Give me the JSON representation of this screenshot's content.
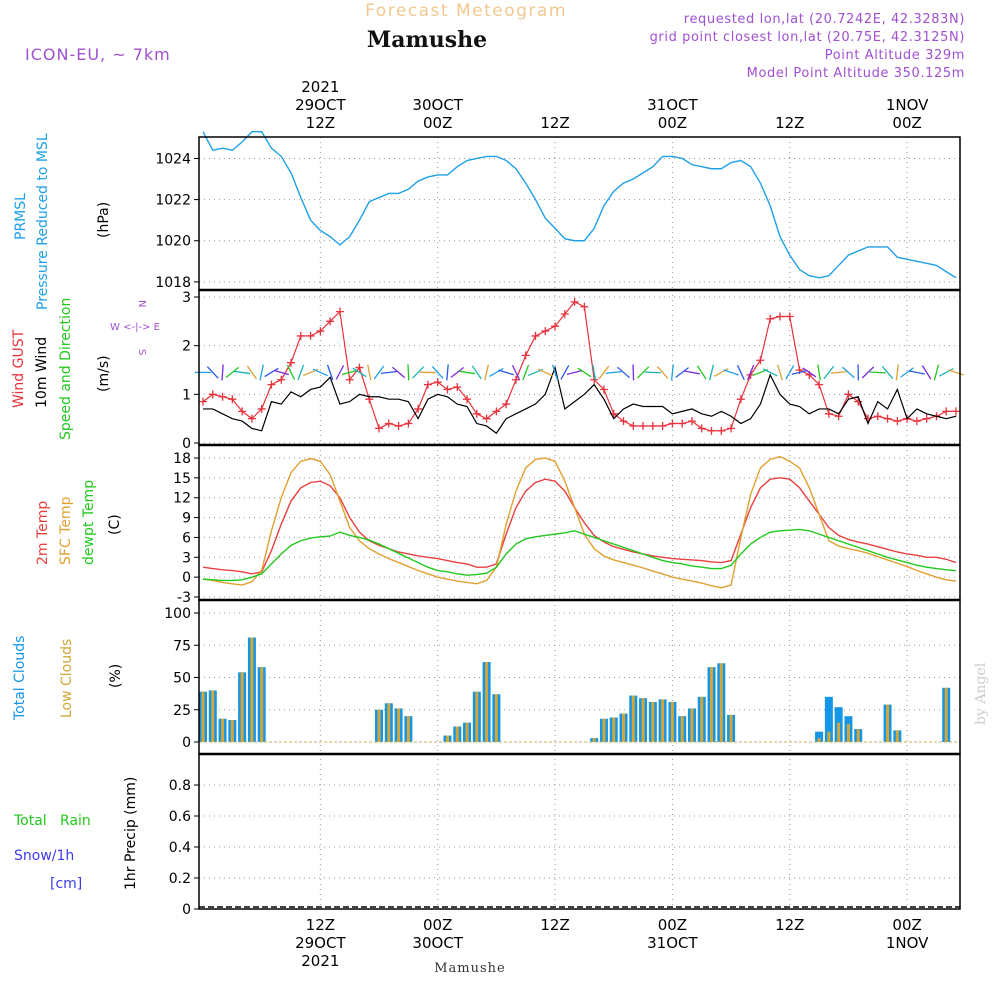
{
  "header": {
    "product": "Forecast Meteogram",
    "location": "Mamushe",
    "model": "ICON-EU, ~ 7km",
    "requested": "requested lon,lat (20.7242E, 42.3283N)",
    "grid_point": "grid point closest lon,lat (20.75E, 42.3125N)",
    "point_altitude": "Point Altitude 329m",
    "model_altitude": "Model Point Altitude 350.125m",
    "footer_location": "Mamushe",
    "credit": "by Angel"
  },
  "time_axis": {
    "top": [
      {
        "t": 12,
        "lines": [
          "2021",
          "29OCT",
          "12Z"
        ]
      },
      {
        "t": 24,
        "lines": [
          "30OCT",
          "00Z"
        ]
      },
      {
        "t": 36,
        "lines": [
          "12Z"
        ]
      },
      {
        "t": 48,
        "lines": [
          "31OCT",
          "00Z"
        ]
      },
      {
        "t": 60,
        "lines": [
          "12Z"
        ]
      },
      {
        "t": 72,
        "lines": [
          "1NOV",
          "00Z"
        ]
      }
    ],
    "bottom": [
      {
        "t": 12,
        "lines": [
          "12Z",
          "29OCT",
          "2021"
        ]
      },
      {
        "t": 24,
        "lines": [
          "00Z",
          "30OCT"
        ]
      },
      {
        "t": 36,
        "lines": [
          "12Z"
        ]
      },
      {
        "t": 48,
        "lines": [
          "00Z",
          "31OCT"
        ]
      },
      {
        "t": 60,
        "lines": [
          "12Z"
        ]
      },
      {
        "t": 72,
        "lines": [
          "00Z",
          "1NOV"
        ]
      }
    ]
  },
  "panel_labels": {
    "pressure": {
      "name": "PRMSL",
      "desc": "Pressure Reduced to MSL",
      "unit": "(hPa)"
    },
    "wind": {
      "gust": "Wind GUST",
      "wind10m": "10m Wind",
      "speed_dir": "Speed and Direction",
      "unit": "(m/s)",
      "compass_n": "N",
      "compass_s": "S",
      "compass_we": "W <-|-> E"
    },
    "temp": {
      "t2m": "2m Temp",
      "sfc": "SFC Temp",
      "dewpt": "dewpt Temp",
      "unit": "(C)"
    },
    "clouds": {
      "total": "Total Clouds",
      "low": "Low Clouds",
      "unit": "(%)"
    },
    "precip": {
      "rain": "Total   Rain",
      "snow": "Snow/1h",
      "snow_unit": "[cm]",
      "name": "1hr Precip (mm)"
    }
  },
  "colors": {
    "pressure": "#1ea0e6",
    "gust": "#e8323c",
    "wind10m": "#000000",
    "green": "#22c81e",
    "t2m": "#e84040",
    "sfc": "#e0a030",
    "dewpt": "#22c81e",
    "total_clouds": "#1496e6",
    "low_clouds": "#d4a637",
    "purple": "#a050d0",
    "header_orange": "#f0c890",
    "snow": "#3c3cf0"
  },
  "chart_data": [
    {
      "type": "line",
      "name": "Pressure Reduced to MSL",
      "ylabel": "(hPa)",
      "ylim": [
        1017.8,
        1024.8
      ],
      "yticks": [
        1018,
        1020,
        1022,
        1024
      ],
      "x": [
        0,
        1,
        2,
        3,
        4,
        5,
        6,
        7,
        8,
        9,
        10,
        11,
        12,
        13,
        14,
        15,
        16,
        17,
        18,
        19,
        20,
        21,
        22,
        23,
        24,
        25,
        26,
        27,
        28,
        29,
        30,
        31,
        32,
        33,
        34,
        35,
        36,
        37,
        38,
        39,
        40,
        41,
        42,
        43,
        44,
        45,
        46,
        47,
        48,
        49,
        50,
        51,
        52,
        53,
        54,
        55,
        56,
        57,
        58,
        59,
        60,
        61,
        62,
        63,
        64,
        65,
        66,
        67,
        68,
        69,
        70,
        71,
        72,
        73,
        74,
        75,
        76,
        77
      ],
      "series": [
        {
          "name": "PRMSL",
          "values": [
            1025.3,
            1024.4,
            1024.5,
            1024.4,
            1024.8,
            1025.3,
            1025.3,
            1024.5,
            1024.1,
            1023.3,
            1022.1,
            1021.0,
            1020.5,
            1020.2,
            1019.8,
            1020.2,
            1021.0,
            1021.9,
            1022.1,
            1022.3,
            1022.3,
            1022.5,
            1022.9,
            1023.1,
            1023.2,
            1023.2,
            1023.6,
            1023.9,
            1024.0,
            1024.1,
            1024.1,
            1023.9,
            1023.5,
            1022.8,
            1022.0,
            1021.1,
            1020.6,
            1020.1,
            1020.0,
            1020.0,
            1020.6,
            1021.7,
            1022.4,
            1022.8,
            1023.0,
            1023.3,
            1023.6,
            1024.1,
            1024.1,
            1024.0,
            1023.7,
            1023.6,
            1023.5,
            1023.5,
            1023.8,
            1023.9,
            1023.6,
            1022.8,
            1021.7,
            1020.2,
            1019.3,
            1018.6,
            1018.3,
            1018.2,
            1018.3,
            1018.8,
            1019.3,
            1019.5,
            1019.7,
            1019.7,
            1019.7,
            1019.2,
            1019.1,
            1019.0,
            1018.9,
            1018.8,
            1018.5,
            1018.2
          ]
        }
      ]
    },
    {
      "type": "line",
      "name": "Wind",
      "ylabel": "(m/s)",
      "ylim": [
        0,
        3
      ],
      "yticks": [
        0,
        1,
        2,
        3
      ],
      "x": [
        0,
        1,
        2,
        3,
        4,
        5,
        6,
        7,
        8,
        9,
        10,
        11,
        12,
        13,
        14,
        15,
        16,
        17,
        18,
        19,
        20,
        21,
        22,
        23,
        24,
        25,
        26,
        27,
        28,
        29,
        30,
        31,
        32,
        33,
        34,
        35,
        36,
        37,
        38,
        39,
        40,
        41,
        42,
        43,
        44,
        45,
        46,
        47,
        48,
        49,
        50,
        51,
        52,
        53,
        54,
        55,
        56,
        57,
        58,
        59,
        60,
        61,
        62,
        63,
        64,
        65,
        66,
        67,
        68,
        69,
        70,
        71,
        72,
        73,
        74,
        75,
        76,
        77
      ],
      "series": [
        {
          "name": "Wind GUST",
          "values": [
            0.85,
            1.0,
            0.95,
            0.9,
            0.65,
            0.5,
            0.7,
            1.2,
            1.3,
            1.65,
            2.2,
            2.2,
            2.3,
            2.5,
            2.7,
            1.3,
            1.55,
            0.9,
            0.3,
            0.4,
            0.35,
            0.4,
            0.7,
            1.2,
            1.25,
            1.1,
            1.15,
            0.9,
            0.6,
            0.5,
            0.65,
            0.8,
            1.3,
            1.8,
            2.2,
            2.3,
            2.4,
            2.65,
            2.9,
            2.8,
            1.3,
            1.1,
            0.6,
            0.45,
            0.35,
            0.35,
            0.35,
            0.35,
            0.4,
            0.4,
            0.45,
            0.3,
            0.25,
            0.25,
            0.3,
            0.9,
            1.4,
            1.7,
            2.55,
            2.6,
            2.6,
            1.5,
            1.4,
            1.2,
            0.6,
            0.55,
            1.0,
            0.85,
            0.5,
            0.55,
            0.5,
            0.45,
            0.5,
            0.45,
            0.5,
            0.55,
            0.65,
            0.65
          ]
        },
        {
          "name": "10m Wind",
          "values": [
            0.7,
            0.7,
            0.6,
            0.5,
            0.45,
            0.3,
            0.25,
            0.85,
            0.8,
            1.05,
            0.95,
            1.1,
            1.15,
            1.35,
            0.8,
            0.85,
            1.0,
            0.95,
            0.95,
            0.9,
            0.9,
            0.85,
            0.5,
            0.9,
            1.0,
            0.95,
            0.8,
            0.75,
            0.4,
            0.35,
            0.2,
            0.5,
            0.6,
            0.7,
            0.8,
            1.0,
            1.55,
            0.7,
            0.85,
            1.0,
            1.2,
            0.9,
            0.5,
            0.7,
            0.8,
            0.75,
            0.75,
            0.75,
            0.6,
            0.65,
            0.7,
            0.6,
            0.55,
            0.65,
            0.55,
            0.4,
            0.5,
            0.8,
            1.4,
            1.0,
            0.8,
            0.75,
            0.6,
            0.7,
            0.7,
            0.6,
            0.9,
            0.95,
            0.4,
            0.85,
            0.7,
            1.1,
            0.5,
            0.7,
            0.6,
            0.55,
            0.5,
            0.55
          ]
        }
      ]
    },
    {
      "type": "line",
      "name": "Temperature",
      "ylabel": "(C)",
      "ylim": [
        -3,
        19
      ],
      "yticks": [
        -3,
        0,
        3,
        6,
        9,
        12,
        15,
        18
      ],
      "x": [
        0,
        1,
        2,
        3,
        4,
        5,
        6,
        7,
        8,
        9,
        10,
        11,
        12,
        13,
        14,
        15,
        16,
        17,
        18,
        19,
        20,
        21,
        22,
        23,
        24,
        25,
        26,
        27,
        28,
        29,
        30,
        31,
        32,
        33,
        34,
        35,
        36,
        37,
        38,
        39,
        40,
        41,
        42,
        43,
        44,
        45,
        46,
        47,
        48,
        49,
        50,
        51,
        52,
        53,
        54,
        55,
        56,
        57,
        58,
        59,
        60,
        61,
        62,
        63,
        64,
        65,
        66,
        67,
        68,
        69,
        70,
        71,
        72,
        73,
        74,
        75,
        76,
        77
      ],
      "series": [
        {
          "name": "2m Temp",
          "values": [
            1.5,
            1.3,
            1.1,
            1.0,
            0.8,
            0.5,
            0.8,
            4.0,
            8.0,
            11.5,
            13.5,
            14.3,
            14.5,
            13.8,
            12.0,
            9.0,
            6.8,
            5.5,
            4.8,
            4.3,
            3.8,
            3.5,
            3.2,
            3.0,
            2.8,
            2.5,
            2.2,
            2.0,
            1.5,
            1.5,
            2.0,
            6.5,
            10.5,
            13.0,
            14.3,
            14.8,
            14.5,
            13.0,
            10.5,
            8.2,
            6.3,
            5.3,
            4.6,
            4.2,
            3.8,
            3.5,
            3.2,
            3.0,
            2.8,
            2.7,
            2.6,
            2.5,
            2.3,
            2.2,
            2.5,
            6.5,
            10.5,
            13.5,
            14.8,
            15.0,
            14.8,
            13.5,
            11.5,
            9.5,
            7.5,
            6.3,
            5.7,
            5.3,
            5.0,
            4.6,
            4.2,
            3.8,
            3.5,
            3.3,
            3.0,
            3.0,
            2.7,
            2.2
          ]
        },
        {
          "name": "SFC Temp",
          "values": [
            -0.3,
            -0.5,
            -0.8,
            -1.0,
            -1.2,
            -0.7,
            1.0,
            7.0,
            12.0,
            15.8,
            17.5,
            17.9,
            17.5,
            15.5,
            11.5,
            7.5,
            5.5,
            4.3,
            3.5,
            2.8,
            2.2,
            1.6,
            1.0,
            0.5,
            0.0,
            -0.3,
            -0.6,
            -0.8,
            -1.0,
            -0.5,
            1.5,
            8.0,
            13.0,
            16.5,
            17.8,
            18.0,
            17.5,
            14.5,
            10.5,
            6.5,
            4.3,
            3.2,
            2.6,
            2.2,
            1.8,
            1.4,
            0.9,
            0.5,
            0.0,
            -0.3,
            -0.6,
            -0.9,
            -1.3,
            -1.6,
            -1.2,
            6.0,
            12.5,
            16.5,
            17.8,
            18.2,
            17.5,
            16.5,
            13.5,
            9.5,
            5.5,
            4.7,
            4.3,
            4.0,
            3.6,
            3.1,
            2.6,
            2.1,
            1.6,
            1.0,
            0.5,
            0.0,
            -0.4,
            -0.6
          ]
        },
        {
          "name": "dewpt Temp",
          "values": [
            -0.3,
            -0.4,
            -0.5,
            -0.5,
            -0.4,
            0.0,
            0.5,
            2.0,
            3.5,
            4.8,
            5.5,
            5.9,
            6.1,
            6.2,
            6.8,
            6.3,
            6.0,
            5.6,
            5.0,
            4.3,
            3.6,
            2.9,
            2.2,
            1.5,
            1.0,
            0.8,
            0.5,
            0.3,
            0.4,
            0.6,
            1.5,
            3.5,
            5.0,
            5.8,
            6.1,
            6.3,
            6.5,
            6.7,
            7.0,
            6.5,
            6.0,
            5.5,
            5.0,
            4.5,
            4.0,
            3.5,
            3.0,
            2.5,
            2.2,
            2.0,
            1.7,
            1.5,
            1.3,
            1.3,
            1.8,
            3.5,
            5.0,
            6.0,
            6.8,
            7.0,
            7.1,
            7.2,
            7.0,
            6.5,
            6.0,
            5.5,
            5.0,
            4.5,
            4.0,
            3.5,
            3.0,
            2.6,
            2.2,
            1.8,
            1.5,
            1.3,
            1.1,
            1.0
          ]
        }
      ]
    },
    {
      "type": "bar",
      "name": "Clouds",
      "ylabel": "(%)",
      "ylim": [
        -5,
        105
      ],
      "yticks": [
        0,
        25,
        50,
        75,
        100
      ],
      "x": [
        0,
        1,
        2,
        3,
        4,
        5,
        6,
        7,
        8,
        9,
        10,
        11,
        12,
        13,
        14,
        15,
        16,
        17,
        18,
        19,
        20,
        21,
        22,
        23,
        24,
        25,
        26,
        27,
        28,
        29,
        30,
        31,
        32,
        33,
        34,
        35,
        36,
        37,
        38,
        39,
        40,
        41,
        42,
        43,
        44,
        45,
        46,
        47,
        48,
        49,
        50,
        51,
        52,
        53,
        54,
        55,
        56,
        57,
        58,
        59,
        60,
        61,
        62,
        63,
        64,
        65,
        66,
        67,
        68,
        69,
        70,
        71,
        72,
        73,
        74,
        75,
        76,
        77
      ],
      "series": [
        {
          "name": "Total Clouds",
          "values": [
            39,
            40,
            18,
            17,
            54,
            81,
            58,
            0,
            0,
            0,
            0,
            0,
            0,
            0,
            0,
            0,
            0,
            0,
            25,
            30,
            26,
            20,
            0,
            0,
            0,
            5,
            12,
            15,
            39,
            62,
            37,
            0,
            0,
            0,
            0,
            0,
            0,
            0,
            0,
            0,
            3,
            18,
            19,
            22,
            36,
            34,
            31,
            33,
            31,
            20,
            26,
            35,
            58,
            61,
            21,
            0,
            0,
            0,
            0,
            0,
            0,
            0,
            0,
            8,
            35,
            27,
            20,
            10,
            0,
            0,
            29,
            9,
            0,
            0,
            0,
            0,
            42,
            0
          ]
        },
        {
          "name": "Low Clouds",
          "values": [
            39,
            40,
            18,
            17,
            54,
            81,
            58,
            0,
            0,
            0,
            0,
            0,
            0,
            0,
            0,
            0,
            0,
            0,
            25,
            30,
            26,
            20,
            0,
            0,
            0,
            5,
            12,
            15,
            39,
            62,
            37,
            0,
            0,
            0,
            0,
            0,
            0,
            0,
            0,
            0,
            3,
            18,
            19,
            22,
            36,
            34,
            31,
            33,
            31,
            20,
            26,
            35,
            58,
            61,
            21,
            0,
            0,
            0,
            0,
            0,
            0,
            0,
            0,
            3,
            8,
            15,
            14,
            10,
            0,
            0,
            29,
            9,
            0,
            0,
            0,
            0,
            42,
            0
          ]
        }
      ]
    },
    {
      "type": "bar",
      "name": "1hr Precip",
      "ylabel": "1hr Precip (mm)",
      "ylim": [
        0,
        1.0
      ],
      "yticks": [
        0,
        0.2,
        0.4,
        0.6,
        0.8
      ],
      "series": [
        {
          "name": "Total Rain",
          "values": []
        },
        {
          "name": "Snow/1h",
          "values": []
        }
      ]
    }
  ]
}
